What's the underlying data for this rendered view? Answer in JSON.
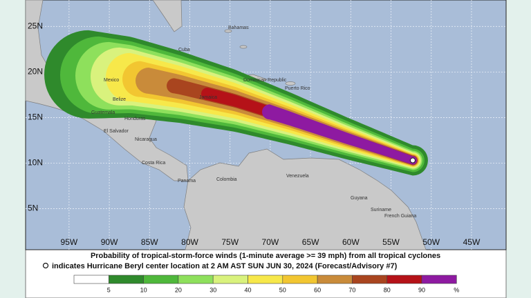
{
  "map": {
    "lon_range": [
      -100.4,
      -40.7
    ],
    "lat_range": [
      0.5,
      27.9
    ],
    "lat_ticks": [
      {
        "value": 25,
        "label": "25N"
      },
      {
        "value": 20,
        "label": "20N"
      },
      {
        "value": 15,
        "label": "15N"
      },
      {
        "value": 10,
        "label": "10N"
      },
      {
        "value": 5,
        "label": "5N"
      }
    ],
    "lon_ticks": [
      {
        "value": -95,
        "label": "95W"
      },
      {
        "value": -90,
        "label": "90W"
      },
      {
        "value": -85,
        "label": "85W"
      },
      {
        "value": -80,
        "label": "80W"
      },
      {
        "value": -75,
        "label": "75W"
      },
      {
        "value": -70,
        "label": "70W"
      },
      {
        "value": -65,
        "label": "65W"
      },
      {
        "value": -60,
        "label": "60W"
      },
      {
        "value": -55,
        "label": "55W"
      },
      {
        "value": -50,
        "label": "50W"
      },
      {
        "value": -45,
        "label": "45W"
      }
    ],
    "places": [
      "Bahamas",
      "Cuba",
      "Mexico",
      "Belize",
      "Jamaica",
      "Dominican Republic",
      "Puerto Rico",
      "Guatemala",
      "Honduras",
      "El Salvador",
      "Nicaragua",
      "Costa Rica",
      "Panama",
      "Colombia",
      "Venezuela",
      "Guyana",
      "Suriname",
      "French Guiana"
    ],
    "storm_center": {
      "lon": -52.3,
      "lat": 10.3
    },
    "caption": [
      "Probability of tropical-storm-force winds (1-minute average >= 39 mph) from all tropical cyclones",
      "indicates Hurricane Beryl center location at 2 AM AST SUN JUN 30, 2024 (Forecast/Advisory #7)"
    ],
    "legend": {
      "thresholds": [
        5,
        10,
        20,
        30,
        40,
        50,
        60,
        70,
        80,
        90
      ],
      "unit": "%",
      "colors": [
        "#ffffff",
        "#2f8a2c",
        "#4fb83b",
        "#8ee05c",
        "#d9f27d",
        "#f7e84a",
        "#f2c631",
        "#c98b3a",
        "#a9451f",
        "#b51218",
        "#8e1aa1"
      ]
    }
  }
}
